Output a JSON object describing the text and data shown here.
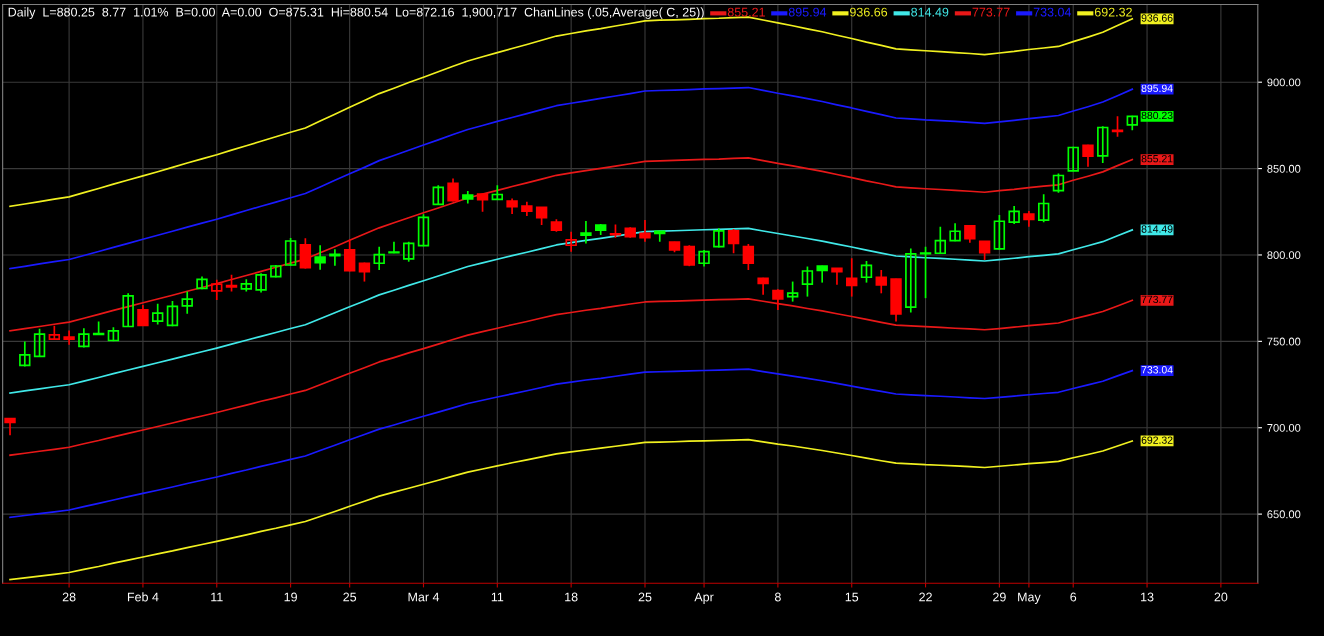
{
  "chart_data": {
    "type": "candlestick",
    "title": "Daily  L=880.25  8.77  1.01%  B=0.00  A=0.00  O=875.31  Hi=880.54  Lo=872.16  1,900,717  ChanLines (.05,Average( C, 25))",
    "categories": [
      null,
      null,
      null,
      null,
      "28",
      null,
      null,
      null,
      null,
      "Feb 4",
      null,
      null,
      null,
      null,
      "11",
      null,
      null,
      null,
      null,
      "19",
      null,
      null,
      null,
      "25",
      null,
      null,
      null,
      null,
      "Mar 4",
      null,
      null,
      null,
      null,
      "11",
      null,
      null,
      null,
      null,
      "18",
      null,
      null,
      null,
      null,
      "25",
      null,
      null,
      null,
      "Apr",
      null,
      null,
      null,
      null,
      "8",
      null,
      null,
      null,
      null,
      "15",
      null,
      null,
      null,
      null,
      "22",
      null,
      null,
      null,
      null,
      "29",
      null,
      "May",
      null,
      null,
      "6",
      null,
      null,
      null,
      null,
      "13",
      null,
      null,
      null,
      null,
      "20",
      null,
      null
    ],
    "ohlc": [
      [
        705.3,
        705.5,
        695.6,
        703.1
      ],
      [
        736.1,
        749.9,
        735.5,
        742.2
      ],
      [
        741.3,
        757.3,
        740.9,
        754.2
      ],
      [
        751.3,
        759.0,
        751.0,
        753.7
      ],
      [
        752.4,
        756.3,
        748.0,
        751.3
      ],
      [
        747.1,
        757.6,
        746.5,
        754.2
      ],
      [
        754.0,
        761.5,
        753.8,
        754.5
      ],
      [
        750.5,
        758.2,
        750.0,
        756.1
      ],
      [
        758.6,
        777.9,
        758.3,
        776.3
      ],
      [
        768.2,
        771.1,
        759.0,
        759.2
      ],
      [
        761.7,
        771.7,
        759.8,
        766.3
      ],
      [
        759.2,
        773.4,
        758.8,
        770.2
      ],
      [
        770.5,
        778.8,
        765.9,
        774.4
      ],
      [
        780.7,
        787.5,
        780.2,
        785.9
      ],
      [
        779.2,
        785.6,
        774.0,
        783.1
      ],
      [
        782.3,
        788.5,
        778.8,
        781.5
      ],
      [
        780.4,
        785.9,
        778.8,
        783.3
      ],
      [
        779.8,
        789.4,
        778.2,
        788.5
      ],
      [
        787.5,
        794.2,
        787.0,
        793.6
      ],
      [
        794.2,
        809.8,
        793.8,
        808.1
      ],
      [
        805.8,
        809.6,
        792.1,
        792.7
      ],
      [
        798.7,
        805.6,
        791.4,
        795.6
      ],
      [
        799.6,
        803.3,
        793.7,
        800.4
      ],
      [
        802.9,
        809.0,
        790.5,
        790.9
      ],
      [
        795.2,
        795.6,
        784.6,
        790.4
      ],
      [
        795.2,
        804.8,
        791.3,
        800.2
      ],
      [
        801.3,
        807.7,
        801.0,
        801.6
      ],
      [
        797.7,
        807.7,
        796.1,
        806.7
      ],
      [
        805.4,
        823.5,
        805.0,
        821.8
      ],
      [
        829.3,
        840.4,
        828.9,
        839.1
      ],
      [
        841.4,
        844.3,
        831.0,
        831.4
      ],
      [
        834.7,
        837.0,
        829.8,
        832.5
      ],
      [
        835.2,
        835.4,
        825.0,
        832.0
      ],
      [
        832.2,
        840.4,
        831.9,
        835.0
      ],
      [
        831.2,
        832.7,
        823.7,
        827.9
      ],
      [
        828.3,
        830.8,
        822.5,
        825.4
      ],
      [
        827.5,
        827.8,
        817.3,
        821.6
      ],
      [
        819.1,
        820.6,
        813.5,
        814.4
      ],
      [
        805.6,
        813.5,
        801.9,
        808.7
      ],
      [
        812.6,
        819.6,
        806.7,
        811.4
      ],
      [
        817.3,
        817.9,
        811.6,
        814.4
      ],
      [
        812.0,
        817.7,
        810.0,
        811.8
      ],
      [
        815.4,
        816.0,
        810.0,
        810.6
      ],
      [
        812.5,
        820.2,
        807.7,
        810.0
      ],
      [
        813.7,
        813.9,
        807.7,
        812.5
      ],
      [
        807.5,
        807.7,
        801.5,
        802.9
      ],
      [
        804.8,
        805.6,
        793.5,
        794.2
      ],
      [
        795.2,
        802.9,
        793.3,
        801.9
      ],
      [
        804.8,
        815.4,
        804.3,
        813.9
      ],
      [
        813.9,
        815.0,
        801.0,
        806.7
      ],
      [
        804.8,
        806.4,
        791.3,
        795.2
      ],
      [
        786.5,
        786.8,
        776.9,
        783.6
      ],
      [
        779.4,
        780.2,
        768.2,
        774.6
      ],
      [
        775.9,
        784.6,
        773.0,
        777.9
      ],
      [
        783.1,
        793.3,
        775.9,
        790.7
      ],
      [
        793.6,
        793.8,
        784.0,
        791.0
      ],
      [
        792.3,
        792.5,
        782.7,
        790.4
      ],
      [
        786.5,
        798.1,
        775.9,
        782.3
      ],
      [
        787.1,
        796.5,
        784.0,
        794.0
      ],
      [
        787.1,
        791.3,
        777.8,
        782.7
      ],
      [
        786.1,
        786.3,
        761.5,
        765.9
      ],
      [
        769.8,
        803.8,
        766.7,
        800.6
      ],
      [
        801.0,
        804.8,
        775.0,
        800.7
      ],
      [
        801.0,
        816.4,
        800.6,
        808.3
      ],
      [
        808.3,
        818.3,
        808.0,
        813.7
      ],
      [
        816.8,
        817.0,
        807.1,
        809.4
      ],
      [
        807.9,
        808.0,
        797.1,
        801.3
      ],
      [
        803.5,
        823.1,
        803.0,
        819.5
      ],
      [
        819.0,
        828.3,
        817.9,
        825.2
      ],
      [
        823.7,
        825.4,
        816.4,
        820.6
      ],
      [
        820.2,
        835.2,
        819.0,
        829.8
      ],
      [
        837.2,
        847.2,
        836.0,
        846.0
      ],
      [
        848.7,
        862.6,
        848.5,
        862.2
      ],
      [
        863.5,
        863.8,
        851.0,
        857.2
      ],
      [
        857.4,
        874.5,
        853.3,
        873.8
      ],
      [
        872.2,
        880.3,
        868.4,
        871.5
      ],
      [
        875.31,
        880.54,
        872.16,
        880.25
      ],
      null,
      null,
      null,
      null,
      null,
      null,
      null,
      null
    ],
    "colors": [
      "#ff0000",
      "#00ff00",
      "#00ff00",
      "#ff0000",
      "#ff0000",
      "#00ff00",
      "#00ff00",
      "#00ff00",
      "#00ff00",
      "#ff0000",
      "#00ff00",
      "#00ff00",
      "#00ff00",
      "#00ff00",
      "#ff0000",
      "#ff0000",
      "#00ff00",
      "#00ff00",
      "#00ff00",
      "#00ff00",
      "#ff0000",
      "#00ff00",
      "#00ff00",
      "#ff0000",
      "#ff0000",
      "#00ff00",
      "#00ff00",
      "#00ff00",
      "#00ff00",
      "#00ff00",
      "#ff0000",
      "#00ff00",
      "#ff0000",
      "#00ff00",
      "#ff0000",
      "#ff0000",
      "#ff0000",
      "#ff0000",
      "#ff0000",
      "#00ff00",
      "#00ff00",
      "#ff0000",
      "#ff0000",
      "#ff0000",
      "#00ff00",
      "#ff0000",
      "#ff0000",
      "#00ff00",
      "#00ff00",
      "#ff0000",
      "#ff0000",
      "#ff0000",
      "#ff0000",
      "#00ff00",
      "#00ff00",
      "#00ff00",
      "#ff0000",
      "#ff0000",
      "#00ff00",
      "#ff0000",
      "#ff0000",
      "#00ff00",
      "#00ff00",
      "#00ff00",
      "#00ff00",
      "#ff0000",
      "#ff0000",
      "#00ff00",
      "#00ff00",
      "#ff0000",
      "#00ff00",
      "#00ff00",
      "#00ff00",
      "#ff0000",
      "#00ff00",
      "#ff0000",
      "#00ff00",
      null,
      null,
      null,
      null,
      null,
      null,
      null,
      null
    ],
    "series": [
      {
        "name": "855.21",
        "type": "line",
        "color": "#e81818",
        "values": [
          756.1,
          757.4,
          758.6,
          759.9,
          761.1,
          763.4,
          765.6,
          767.9,
          770.1,
          772.3,
          774.5,
          776.7,
          779.0,
          781.2,
          783.4,
          785.8,
          788.1,
          790.5,
          792.9,
          795.3,
          797.6,
          801.3,
          804.8,
          808.5,
          812.1,
          815.7,
          818.6,
          821.5,
          824.4,
          827.2,
          830.1,
          833.0,
          835.2,
          837.4,
          839.6,
          841.7,
          843.9,
          846.1,
          847.5,
          848.8,
          850.1,
          851.4,
          852.8,
          854.2,
          854.5,
          854.7,
          855.0,
          855.3,
          855.5,
          855.9,
          856.2,
          854.6,
          853.0,
          851.6,
          850.0,
          848.4,
          846.6,
          844.8,
          842.9,
          841.2,
          839.4,
          838.8,
          838.3,
          837.9,
          837.4,
          836.9,
          836.3,
          837.2,
          838.0,
          839.0,
          839.8,
          840.6,
          843.2,
          845.6,
          848.1,
          851.7,
          855.21,
          null,
          null,
          null,
          null,
          null,
          null,
          null,
          null
        ],
        "value_labels": [
          null,
          null,
          null,
          null,
          null,
          null,
          null,
          null,
          null,
          null,
          null,
          null,
          null,
          null,
          null,
          null,
          null,
          null,
          null,
          null,
          null,
          null,
          null,
          null,
          null,
          null,
          null,
          null,
          null,
          null,
          null,
          null,
          null,
          null,
          null,
          null,
          null,
          null,
          null,
          null,
          null,
          null,
          null,
          null,
          null,
          null,
          null,
          null,
          null,
          null,
          null,
          null,
          null,
          null,
          null,
          null,
          null,
          null,
          null,
          null,
          null,
          null,
          null,
          null,
          null,
          null,
          null,
          null,
          null,
          null,
          null,
          null,
          null,
          null,
          null,
          null,
          "855.21",
          null,
          null,
          null,
          null,
          null,
          null,
          null,
          null
        ]
      },
      {
        "name": "895.94",
        "type": "line",
        "color": "#1a1aff",
        "values": [
          792.1,
          793.4,
          794.8,
          796.1,
          797.4,
          799.7,
          802.0,
          804.4,
          806.7,
          809.1,
          811.4,
          813.7,
          816.1,
          818.4,
          820.7,
          823.2,
          825.7,
          828.2,
          830.6,
          833.1,
          835.6,
          839.4,
          843.2,
          847.0,
          850.7,
          854.6,
          857.6,
          860.6,
          863.6,
          866.6,
          869.7,
          872.6,
          874.9,
          877.3,
          879.6,
          881.8,
          884.1,
          886.4,
          887.8,
          889.2,
          890.6,
          892.0,
          893.4,
          894.9,
          895.2,
          895.4,
          895.7,
          896.1,
          896.3,
          896.6,
          896.9,
          895.3,
          893.6,
          892.1,
          890.5,
          888.8,
          886.9,
          885.1,
          883.1,
          881.2,
          879.3,
          878.8,
          878.2,
          877.8,
          877.3,
          876.7,
          876.2,
          877.0,
          877.9,
          878.9,
          879.8,
          880.7,
          883.3,
          885.8,
          888.5,
          892.2,
          895.94,
          null,
          null,
          null,
          null,
          null,
          null,
          null,
          null
        ],
        "value_labels": [
          null,
          null,
          null,
          null,
          null,
          null,
          null,
          null,
          null,
          null,
          null,
          null,
          null,
          null,
          null,
          null,
          null,
          null,
          null,
          null,
          null,
          null,
          null,
          null,
          null,
          null,
          null,
          null,
          null,
          null,
          null,
          null,
          null,
          null,
          null,
          null,
          null,
          null,
          null,
          null,
          null,
          null,
          null,
          null,
          null,
          null,
          null,
          null,
          null,
          null,
          null,
          null,
          null,
          null,
          null,
          null,
          null,
          null,
          null,
          null,
          null,
          null,
          null,
          null,
          null,
          null,
          null,
          null,
          null,
          null,
          null,
          null,
          null,
          null,
          null,
          null,
          "895.94",
          null,
          null,
          null,
          null,
          null,
          null,
          null,
          null
        ]
      },
      {
        "name": "936.66",
        "type": "line",
        "color": "#f0f020",
        "values": [
          828.1,
          829.5,
          830.9,
          832.3,
          833.6,
          836.1,
          838.5,
          841.0,
          843.4,
          845.8,
          848.2,
          850.7,
          853.2,
          855.6,
          858.0,
          860.7,
          863.2,
          865.8,
          868.4,
          871.0,
          873.5,
          877.6,
          881.5,
          885.5,
          889.4,
          893.4,
          896.5,
          899.8,
          902.9,
          906.0,
          909.2,
          912.3,
          914.7,
          917.1,
          919.5,
          921.8,
          924.3,
          926.7,
          928.2,
          929.7,
          931.0,
          932.5,
          934.0,
          935.5,
          935.9,
          936.1,
          936.4,
          936.8,
          937.0,
          937.4,
          937.7,
          936.0,
          934.3,
          932.7,
          930.9,
          929.2,
          927.2,
          925.3,
          923.2,
          921.3,
          919.3,
          918.7,
          918.2,
          917.7,
          917.1,
          916.6,
          916.0,
          916.9,
          917.8,
          918.9,
          919.8,
          920.7,
          923.5,
          926.1,
          928.9,
          932.8,
          936.66,
          null,
          null,
          null,
          null,
          null,
          null,
          null,
          null
        ],
        "value_labels": [
          null,
          null,
          null,
          null,
          null,
          null,
          null,
          null,
          null,
          null,
          null,
          null,
          null,
          null,
          null,
          null,
          null,
          null,
          null,
          null,
          null,
          null,
          null,
          null,
          null,
          null,
          null,
          null,
          null,
          null,
          null,
          null,
          null,
          null,
          null,
          null,
          null,
          null,
          null,
          null,
          null,
          null,
          null,
          null,
          null,
          null,
          null,
          null,
          null,
          null,
          null,
          null,
          null,
          null,
          null,
          null,
          null,
          null,
          null,
          null,
          null,
          null,
          null,
          null,
          null,
          null,
          null,
          null,
          null,
          null,
          null,
          null,
          null,
          null,
          null,
          null,
          "936.66",
          null,
          null,
          null,
          null,
          null,
          null,
          null,
          null
        ]
      },
      {
        "name": "814.49",
        "type": "line",
        "color": "#40e8e8",
        "values": [
          720.1,
          721.3,
          722.5,
          723.7,
          724.9,
          727.0,
          729.1,
          731.3,
          733.4,
          735.5,
          737.6,
          739.7,
          741.9,
          744.0,
          746.1,
          748.4,
          750.6,
          752.9,
          755.1,
          757.4,
          759.6,
          763.1,
          766.5,
          770.0,
          773.4,
          776.9,
          779.6,
          782.4,
          785.1,
          787.8,
          790.6,
          793.3,
          795.4,
          797.5,
          799.6,
          801.6,
          803.7,
          805.8,
          807.1,
          808.4,
          809.6,
          810.9,
          812.2,
          813.5,
          813.8,
          814.0,
          814.3,
          814.6,
          814.8,
          815.1,
          815.4,
          813.9,
          812.4,
          811.0,
          809.5,
          808.0,
          806.3,
          804.6,
          802.8,
          801.1,
          799.4,
          798.9,
          798.4,
          798.0,
          797.5,
          797.0,
          796.5,
          797.3,
          798.1,
          799.0,
          799.8,
          800.6,
          803.0,
          805.3,
          807.7,
          811.1,
          814.49,
          null,
          null,
          null,
          null,
          null,
          null,
          null,
          null
        ],
        "value_labels": [
          null,
          null,
          null,
          null,
          null,
          null,
          null,
          null,
          null,
          null,
          null,
          null,
          null,
          null,
          null,
          null,
          null,
          null,
          null,
          null,
          null,
          null,
          null,
          null,
          null,
          null,
          null,
          null,
          null,
          null,
          null,
          null,
          null,
          null,
          null,
          null,
          null,
          null,
          null,
          null,
          null,
          null,
          null,
          null,
          null,
          null,
          null,
          null,
          null,
          null,
          null,
          null,
          null,
          null,
          null,
          null,
          null,
          null,
          null,
          null,
          null,
          null,
          null,
          null,
          null,
          null,
          null,
          null,
          null,
          null,
          null,
          null,
          null,
          null,
          null,
          null,
          "814.49",
          null,
          null,
          null,
          null,
          null,
          null,
          null,
          null
        ]
      },
      {
        "name": "773.77",
        "type": "line",
        "color": "#e81818",
        "values": [
          684.1,
          685.2,
          686.4,
          687.5,
          688.7,
          690.7,
          692.6,
          694.7,
          696.7,
          698.7,
          700.7,
          702.7,
          704.8,
          706.8,
          708.8,
          711.0,
          713.1,
          715.3,
          717.3,
          719.5,
          721.6,
          724.9,
          728.2,
          731.5,
          734.7,
          738.1,
          740.6,
          743.3,
          745.8,
          748.4,
          751.1,
          753.6,
          755.6,
          757.6,
          759.6,
          761.5,
          763.5,
          765.5,
          766.7,
          768.0,
          769.1,
          770.4,
          771.6,
          772.8,
          773.1,
          773.3,
          773.6,
          773.9,
          774.1,
          774.3,
          774.6,
          773.2,
          771.8,
          770.5,
          769.0,
          767.6,
          766.0,
          764.4,
          762.7,
          761.0,
          759.4,
          759.0,
          758.5,
          758.1,
          757.6,
          757.2,
          756.7,
          757.4,
          758.2,
          759.1,
          759.8,
          760.6,
          762.9,
          765.0,
          767.3,
          770.5,
          773.77,
          null,
          null,
          null,
          null,
          null,
          null,
          null,
          null
        ],
        "value_labels": [
          null,
          null,
          null,
          null,
          null,
          null,
          null,
          null,
          null,
          null,
          null,
          null,
          null,
          null,
          null,
          null,
          null,
          null,
          null,
          null,
          null,
          null,
          null,
          null,
          null,
          null,
          null,
          null,
          null,
          null,
          null,
          null,
          null,
          null,
          null,
          null,
          null,
          null,
          null,
          null,
          null,
          null,
          null,
          null,
          null,
          null,
          null,
          null,
          null,
          null,
          null,
          null,
          null,
          null,
          null,
          null,
          null,
          null,
          null,
          null,
          null,
          null,
          null,
          null,
          null,
          null,
          null,
          null,
          null,
          null,
          null,
          null,
          null,
          null,
          null,
          null,
          "773.77",
          null,
          null,
          null,
          null,
          null,
          null,
          null,
          null
        ]
      },
      {
        "name": "733.04",
        "type": "line",
        "color": "#1a1aff",
        "values": [
          648.1,
          649.2,
          650.3,
          651.3,
          652.4,
          654.3,
          656.2,
          658.2,
          660.1,
          662.0,
          663.8,
          665.7,
          667.7,
          669.6,
          671.5,
          673.6,
          675.5,
          677.6,
          679.6,
          681.7,
          683.6,
          686.8,
          689.9,
          693.0,
          696.1,
          699.2,
          701.6,
          704.2,
          706.6,
          709.0,
          711.5,
          714.0,
          715.9,
          717.8,
          719.6,
          721.4,
          723.3,
          725.2,
          726.4,
          727.6,
          728.6,
          729.8,
          731.0,
          732.2,
          732.4,
          732.6,
          732.9,
          733.1,
          733.3,
          733.6,
          733.9,
          732.5,
          731.2,
          729.9,
          728.6,
          727.2,
          725.7,
          724.1,
          722.5,
          721.0,
          719.5,
          719.0,
          718.6,
          718.2,
          717.8,
          717.3,
          716.9,
          717.6,
          718.3,
          719.1,
          719.8,
          720.5,
          722.7,
          724.8,
          726.9,
          730.0,
          733.04,
          null,
          null,
          null,
          null,
          null,
          null,
          null,
          null
        ],
        "value_labels": [
          null,
          null,
          null,
          null,
          null,
          null,
          null,
          null,
          null,
          null,
          null,
          null,
          null,
          null,
          null,
          null,
          null,
          null,
          null,
          null,
          null,
          null,
          null,
          null,
          null,
          null,
          null,
          null,
          null,
          null,
          null,
          null,
          null,
          null,
          null,
          null,
          null,
          null,
          null,
          null,
          null,
          null,
          null,
          null,
          null,
          null,
          null,
          null,
          null,
          null,
          null,
          null,
          null,
          null,
          null,
          null,
          null,
          null,
          null,
          null,
          null,
          null,
          null,
          null,
          null,
          null,
          null,
          null,
          null,
          null,
          null,
          null,
          null,
          null,
          null,
          null,
          "733.04",
          null,
          null,
          null,
          null,
          null,
          null,
          null,
          null
        ]
      },
      {
        "name": "692.32",
        "type": "line",
        "color": "#f0f020",
        "values": [
          612.1,
          613.1,
          614.1,
          615.1,
          616.2,
          618.0,
          619.7,
          621.6,
          623.4,
          625.2,
          627.0,
          628.7,
          630.6,
          632.4,
          634.2,
          636.1,
          638.0,
          640.0,
          641.8,
          643.8,
          645.7,
          648.6,
          651.5,
          654.5,
          657.4,
          660.4,
          662.7,
          665.0,
          667.3,
          669.6,
          672.0,
          674.3,
          676.1,
          677.9,
          679.7,
          681.4,
          683.1,
          684.9,
          686.0,
          687.1,
          688.2,
          689.3,
          690.4,
          691.5,
          691.7,
          691.9,
          692.2,
          692.4,
          692.6,
          692.8,
          693.1,
          691.8,
          690.5,
          689.4,
          688.1,
          686.8,
          685.4,
          683.9,
          682.4,
          680.9,
          679.5,
          679.1,
          678.6,
          678.3,
          677.9,
          677.5,
          677.0,
          677.7,
          678.4,
          679.2,
          679.8,
          680.5,
          682.6,
          684.5,
          686.5,
          689.4,
          692.32,
          null,
          null,
          null,
          null,
          null,
          null,
          null,
          null
        ],
        "value_labels": [
          null,
          null,
          null,
          null,
          null,
          null,
          null,
          null,
          null,
          null,
          null,
          null,
          null,
          null,
          null,
          null,
          null,
          null,
          null,
          null,
          null,
          null,
          null,
          null,
          null,
          null,
          null,
          null,
          null,
          null,
          null,
          null,
          null,
          null,
          null,
          null,
          null,
          null,
          null,
          null,
          null,
          null,
          null,
          null,
          null,
          null,
          null,
          null,
          null,
          null,
          null,
          null,
          null,
          null,
          null,
          null,
          null,
          null,
          null,
          null,
          null,
          null,
          null,
          null,
          null,
          null,
          null,
          null,
          null,
          null,
          null,
          null,
          null,
          null,
          null,
          null,
          "692.32",
          null,
          null,
          null,
          null,
          null,
          null,
          null,
          null
        ]
      }
    ],
    "annotations": [
      "880.23"
    ],
    "ylim": [
      610,
      945
    ],
    "yticks": [
      {
        "value": 650,
        "label": "650.00"
      },
      {
        "value": 700,
        "label": "700.00"
      },
      {
        "value": 750,
        "label": "750.00"
      },
      {
        "value": 800,
        "label": "800.00"
      },
      {
        "value": 850,
        "label": "850.00"
      },
      {
        "value": 900,
        "label": "900.00"
      }
    ],
    "grid": true,
    "legend": "top"
  }
}
